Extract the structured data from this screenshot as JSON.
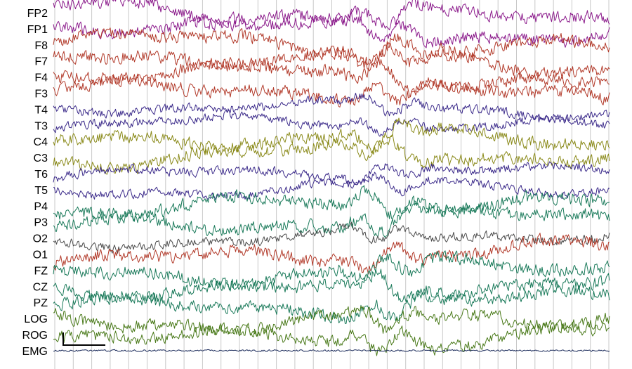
{
  "chart_data": {
    "type": "line",
    "title": "",
    "xlabel": "",
    "ylabel": "",
    "grid": true,
    "legend": "none",
    "scale_bar": true,
    "series": [
      {
        "name": "FP2",
        "color": "#8b1a8b",
        "amplitude": "large"
      },
      {
        "name": "FP1",
        "color": "#8b1a8b",
        "amplitude": "large"
      },
      {
        "name": "F8",
        "color": "#b23a2a",
        "amplitude": "large"
      },
      {
        "name": "F7",
        "color": "#b23a2a",
        "amplitude": "large"
      },
      {
        "name": "F4",
        "color": "#b23a2a",
        "amplitude": "large"
      },
      {
        "name": "F3",
        "color": "#b23a2a",
        "amplitude": "large"
      },
      {
        "name": "T4",
        "color": "#3b2a8a",
        "amplitude": "medium"
      },
      {
        "name": "T3",
        "color": "#3b2a8a",
        "amplitude": "medium"
      },
      {
        "name": "C4",
        "color": "#8a8a1a",
        "amplitude": "large"
      },
      {
        "name": "C3",
        "color": "#8a8a1a",
        "amplitude": "large"
      },
      {
        "name": "T6",
        "color": "#3b2a8a",
        "amplitude": "medium"
      },
      {
        "name": "T5",
        "color": "#3b2a8a",
        "amplitude": "medium"
      },
      {
        "name": "P4",
        "color": "#1a7a5a",
        "amplitude": "large"
      },
      {
        "name": "P3",
        "color": "#1a7a5a",
        "amplitude": "large"
      },
      {
        "name": "O2",
        "color": "#4a4a4a",
        "amplitude": "medium"
      },
      {
        "name": "O1",
        "color": "#b23a2a",
        "amplitude": "large"
      },
      {
        "name": "FZ",
        "color": "#1a7a5a",
        "amplitude": "large"
      },
      {
        "name": "CZ",
        "color": "#1a7a5a",
        "amplitude": "large"
      },
      {
        "name": "PZ",
        "color": "#1a7a5a",
        "amplitude": "large"
      },
      {
        "name": "LOG",
        "color": "#4a7a1a",
        "amplitude": "large"
      },
      {
        "name": "ROG",
        "color": "#4a7a1a",
        "amplitude": "large"
      },
      {
        "name": "EMG",
        "color": "#1a2a5a",
        "amplitude": "small"
      }
    ]
  }
}
